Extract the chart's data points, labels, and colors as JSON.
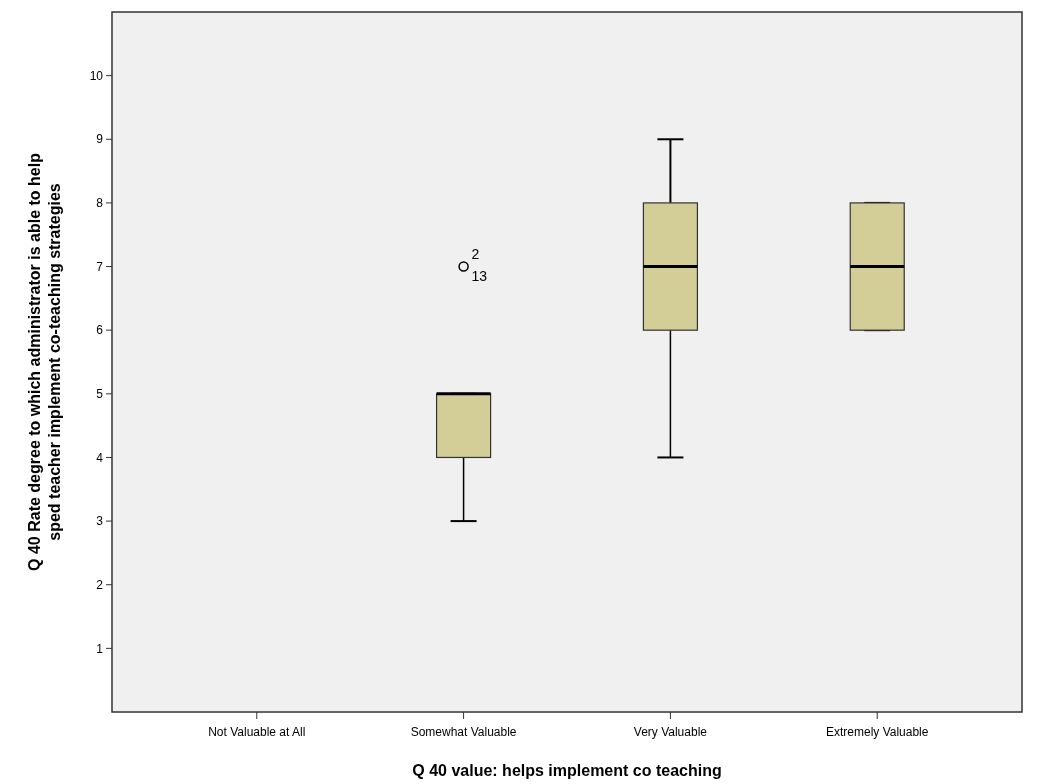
{
  "chart_data": {
    "type": "box",
    "xlabel": "Q 40 value: helps implement co teaching",
    "ylabel": "Q 40 Rate degree to which administrator is able to help sped teacher implement co-teaching strategies",
    "categories": [
      "Not Valuable at All",
      "Somewhat Valuable",
      "Very Valuable",
      "Extremely Valuable"
    ],
    "boxes": [
      null,
      {
        "low": 3,
        "q1": 4,
        "median": 5,
        "q3": 5,
        "high": 5,
        "outliers": [
          7
        ]
      },
      {
        "low": 4,
        "q1": 6,
        "median": 7,
        "q3": 8,
        "high": 9
      },
      {
        "low": 6,
        "q1": 6,
        "median": 7,
        "q3": 8,
        "high": 8
      }
    ],
    "color": "#d3cd98",
    "ylim": [
      0,
      11
    ],
    "yticks": [
      1,
      2,
      3,
      4,
      5,
      6,
      7,
      8,
      9,
      10
    ],
    "annotations": [
      "2",
      "13"
    ]
  }
}
